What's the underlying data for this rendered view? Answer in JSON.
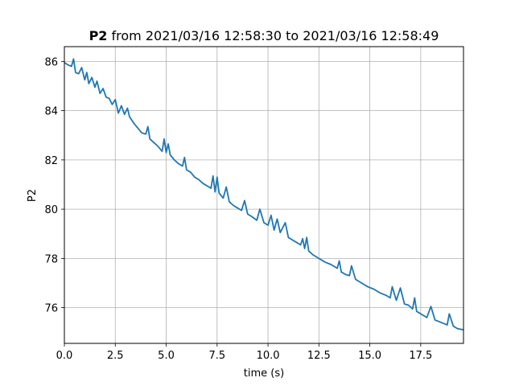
{
  "chart_data": {
    "type": "line",
    "title_bold": "P2",
    "title_rest": " from 2021/03/16 12:58:30 to 2021/03/16 12:58:49",
    "xlabel": "time (s)",
    "ylabel": "P2",
    "xlim": [
      0,
      19.6
    ],
    "ylim": [
      74.55,
      86.6
    ],
    "xticks": [
      0.0,
      2.5,
      5.0,
      7.5,
      10.0,
      12.5,
      15.0,
      17.5
    ],
    "xtick_labels": [
      "0.0",
      "2.5",
      "5.0",
      "7.5",
      "10.0",
      "12.5",
      "15.0",
      "17.5"
    ],
    "yticks": [
      76,
      78,
      80,
      82,
      84,
      86
    ],
    "ytick_labels": [
      "76",
      "78",
      "80",
      "82",
      "84",
      "86"
    ],
    "grid": true,
    "color": "#1f77b4",
    "series": [
      {
        "x": [
          0.0,
          0.2,
          0.35,
          0.45,
          0.55,
          0.7,
          0.85,
          1.0,
          1.1,
          1.2,
          1.35,
          1.5,
          1.6,
          1.75,
          1.9,
          2.05,
          2.2,
          2.35,
          2.5,
          2.65,
          2.8,
          2.95,
          3.1,
          3.2,
          3.4,
          3.6,
          3.8,
          4.0,
          4.1,
          4.2,
          4.4,
          4.6,
          4.8,
          4.9,
          5.0,
          5.1,
          5.2,
          5.4,
          5.6,
          5.8,
          5.9,
          6.0,
          6.2,
          6.4,
          6.6,
          6.8,
          7.0,
          7.2,
          7.3,
          7.4,
          7.5,
          7.6,
          7.8,
          7.95,
          8.1,
          8.3,
          8.5,
          8.7,
          8.85,
          9.0,
          9.2,
          9.45,
          9.6,
          9.8,
          10.0,
          10.15,
          10.3,
          10.45,
          10.6,
          10.85,
          11.0,
          11.2,
          11.4,
          11.6,
          11.7,
          11.8,
          11.9,
          12.0,
          12.2,
          12.5,
          12.8,
          13.1,
          13.4,
          13.5,
          13.6,
          13.8,
          14.0,
          14.1,
          14.3,
          14.6,
          14.9,
          15.2,
          15.5,
          15.8,
          16.0,
          16.1,
          16.3,
          16.5,
          16.7,
          16.9,
          17.1,
          17.2,
          17.3,
          17.5,
          17.8,
          18.0,
          18.2,
          18.5,
          18.8,
          18.9,
          19.1,
          19.3,
          19.6
        ],
        "y": [
          85.95,
          85.85,
          85.8,
          86.1,
          85.55,
          85.5,
          85.75,
          85.25,
          85.55,
          85.1,
          85.35,
          84.95,
          85.2,
          84.7,
          84.9,
          84.55,
          84.5,
          84.25,
          84.45,
          83.9,
          84.2,
          83.85,
          84.1,
          83.75,
          83.5,
          83.3,
          83.1,
          83.05,
          83.35,
          82.85,
          82.7,
          82.55,
          82.35,
          82.85,
          82.3,
          82.65,
          82.2,
          82.0,
          81.85,
          81.75,
          82.1,
          81.6,
          81.5,
          81.3,
          81.2,
          81.05,
          80.95,
          80.85,
          81.35,
          80.7,
          81.3,
          80.65,
          80.45,
          80.9,
          80.3,
          80.15,
          80.05,
          79.95,
          80.35,
          79.8,
          79.7,
          79.55,
          80.0,
          79.45,
          79.35,
          79.75,
          79.15,
          79.6,
          79.05,
          79.45,
          78.85,
          78.75,
          78.65,
          78.55,
          78.8,
          78.4,
          78.85,
          78.3,
          78.15,
          78.0,
          77.85,
          77.75,
          77.6,
          77.9,
          77.45,
          77.35,
          77.3,
          77.7,
          77.15,
          77.0,
          76.85,
          76.75,
          76.6,
          76.5,
          76.4,
          76.85,
          76.3,
          76.8,
          76.15,
          76.1,
          75.95,
          76.4,
          75.85,
          75.75,
          75.6,
          76.05,
          75.5,
          75.4,
          75.3,
          75.75,
          75.25,
          75.15,
          75.1
        ]
      }
    ]
  }
}
